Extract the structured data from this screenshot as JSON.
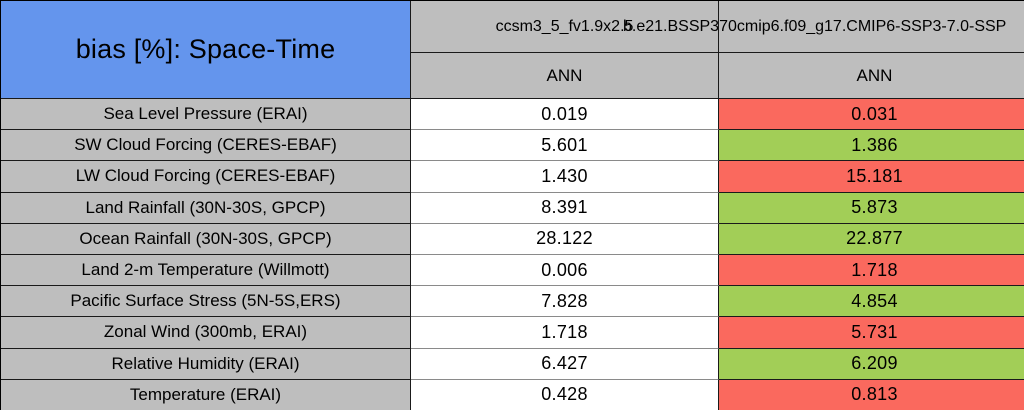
{
  "title": "bias [%]: Space-Time",
  "colors": {
    "title_blue": "#6495ed",
    "header_gray": "#bebebe",
    "worse_red": "#fa695e",
    "better_green": "#a2ce57",
    "neutral_white": "#ffffff"
  },
  "header": {
    "model1": "ccsm3_5_fv1.9x2.5",
    "model2": "b.e21.BSSP370cmip6.f09_g17.CMIP6-SSP3-7.0-SSP",
    "season1": "ANN",
    "season2": "ANN"
  },
  "chart_data": {
    "type": "table",
    "title": "bias [%]: Space-Time",
    "columns": [
      "ccsm3_5_fv1.9x2.5 ANN",
      "b.e21.BSSP370cmip6.f09_g17.CMIP6-SSP3-7.0-SSP ANN"
    ],
    "categories": [
      "Sea Level Pressure (ERAI)",
      "SW Cloud Forcing (CERES-EBAF)",
      "LW Cloud Forcing (CERES-EBAF)",
      "Land Rainfall (30N-30S, GPCP)",
      "Ocean Rainfall (30N-30S, GPCP)",
      "Land 2-m Temperature (Willmott)",
      "Pacific Surface Stress (5N-5S,ERS)",
      "Zonal Wind (300mb, ERAI)",
      "Relative Humidity (ERAI)",
      "Temperature (ERAI)"
    ],
    "series": [
      {
        "name": "ccsm3_5_fv1.9x2.5",
        "values": [
          0.019,
          5.601,
          1.43,
          8.391,
          28.122,
          0.006,
          7.828,
          1.718,
          6.427,
          0.428
        ]
      },
      {
        "name": "b.e21.BSSP370cmip6.f09_g17.CMIP6-SSP3-7.0-SSP",
        "values": [
          0.031,
          1.386,
          15.181,
          5.873,
          22.877,
          1.718,
          4.854,
          5.731,
          6.209,
          0.813
        ]
      }
    ]
  },
  "rows": [
    {
      "label": "Sea Level Pressure (ERAI)",
      "v1": "0.019",
      "v2": "0.031",
      "bg": "#fa695e"
    },
    {
      "label": "SW Cloud Forcing (CERES-EBAF)",
      "v1": "5.601",
      "v2": "1.386",
      "bg": "#a2ce57"
    },
    {
      "label": "LW Cloud Forcing (CERES-EBAF)",
      "v1": "1.430",
      "v2": "15.181",
      "bg": "#fa695e"
    },
    {
      "label": "Land Rainfall (30N-30S, GPCP)",
      "v1": "8.391",
      "v2": "5.873",
      "bg": "#a2ce57"
    },
    {
      "label": "Ocean Rainfall (30N-30S, GPCP)",
      "v1": "28.122",
      "v2": "22.877",
      "bg": "#a2ce57"
    },
    {
      "label": "Land 2-m Temperature (Willmott)",
      "v1": "0.006",
      "v2": "1.718",
      "bg": "#fa695e"
    },
    {
      "label": "Pacific Surface Stress (5N-5S,ERS)",
      "v1": "7.828",
      "v2": "4.854",
      "bg": "#a2ce57"
    },
    {
      "label": "Zonal Wind (300mb, ERAI)",
      "v1": "1.718",
      "v2": "5.731",
      "bg": "#fa695e"
    },
    {
      "label": "Relative Humidity (ERAI)",
      "v1": "6.427",
      "v2": "6.209",
      "bg": "#a2ce57"
    },
    {
      "label": "Temperature (ERAI)",
      "v1": "0.428",
      "v2": "0.813",
      "bg": "#fa695e"
    }
  ]
}
